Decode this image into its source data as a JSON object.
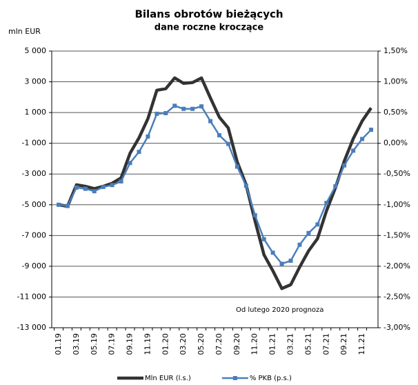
{
  "chart_data": {
    "type": "line",
    "title": "Bilans obrotów bieżących",
    "subtitle": "dane roczne kroczące",
    "y_label": "mln EUR",
    "annotation": "Od lutego 2020 prognoza",
    "categories": [
      "01.19",
      null,
      "03.19",
      null,
      "05.19",
      null,
      "07.19",
      null,
      "09.19",
      null,
      "11.19",
      null,
      "01.20",
      null,
      "03.20",
      null,
      "05.20",
      null,
      "07.20",
      null,
      "09.20",
      null,
      "11.20",
      null,
      "01.21",
      null,
      "03.21",
      null,
      "05.21",
      null,
      "07.21",
      null,
      "09.21",
      null,
      "11.21",
      null
    ],
    "series": [
      {
        "name": "Mln EUR (l.s.)",
        "color": "#333333",
        "values": [
          -5000,
          -5100,
          -3700,
          -3800,
          -3950,
          -3800,
          -3600,
          -3250,
          -1650,
          -650,
          600,
          2450,
          2550,
          3250,
          2900,
          2950,
          3250,
          1950,
          700,
          0,
          -2200,
          -3700,
          -6050,
          -8250,
          -9300,
          -10450,
          -10200,
          -9050,
          -8000,
          -7200,
          -5400,
          -3900,
          -2150,
          -700,
          450,
          1300
        ]
      },
      {
        "name": "% PKB (p.s.)",
        "color": "#4a7ebb",
        "axis": "y2",
        "values": [
          -1.0,
          -1.02,
          -0.72,
          -0.74,
          -0.78,
          -0.71,
          -0.68,
          -0.62,
          -0.32,
          -0.14,
          0.11,
          0.48,
          0.49,
          0.61,
          0.56,
          0.56,
          0.6,
          0.36,
          0.13,
          -0.01,
          -0.38,
          -0.69,
          -1.17,
          -1.56,
          -1.78,
          -1.96,
          -1.91,
          -1.65,
          -1.46,
          -1.32,
          -0.97,
          -0.7,
          -0.36,
          -0.12,
          0.07,
          0.22
        ]
      }
    ],
    "ylim": [
      -13000,
      5000
    ],
    "yticks": [
      {
        "value": -13000,
        "label": "-13 000"
      },
      {
        "value": -11000,
        "label": "-11 000"
      },
      {
        "value": -9000,
        "label": "-9 000"
      },
      {
        "value": -7000,
        "label": "-7 000"
      },
      {
        "value": -5000,
        "label": "-5 000"
      },
      {
        "value": -3000,
        "label": "-3 000"
      },
      {
        "value": -1000,
        "label": "-1 000"
      },
      {
        "value": 1000,
        "label": "1 000"
      },
      {
        "value": 3000,
        "label": "3 000"
      },
      {
        "value": 5000,
        "label": "5 000"
      }
    ],
    "y2lim": [
      -3,
      1.5
    ],
    "y2ticks": [
      {
        "value": -3,
        "label": "-3,00%"
      },
      {
        "value": -2.5,
        "label": "-2,50%"
      },
      {
        "value": -2,
        "label": "-2,00%"
      },
      {
        "value": -1.5,
        "label": "-1,50%"
      },
      {
        "value": -1,
        "label": "-1,00%"
      },
      {
        "value": -0.5,
        "label": "-0,50%"
      },
      {
        "value": 0,
        "label": "0,00%"
      },
      {
        "value": 0.5,
        "label": "0,50%"
      },
      {
        "value": 1,
        "label": "1,00%"
      },
      {
        "value": 1.5,
        "label": "1,50%"
      }
    ],
    "grid": true,
    "legend": "bottom"
  }
}
